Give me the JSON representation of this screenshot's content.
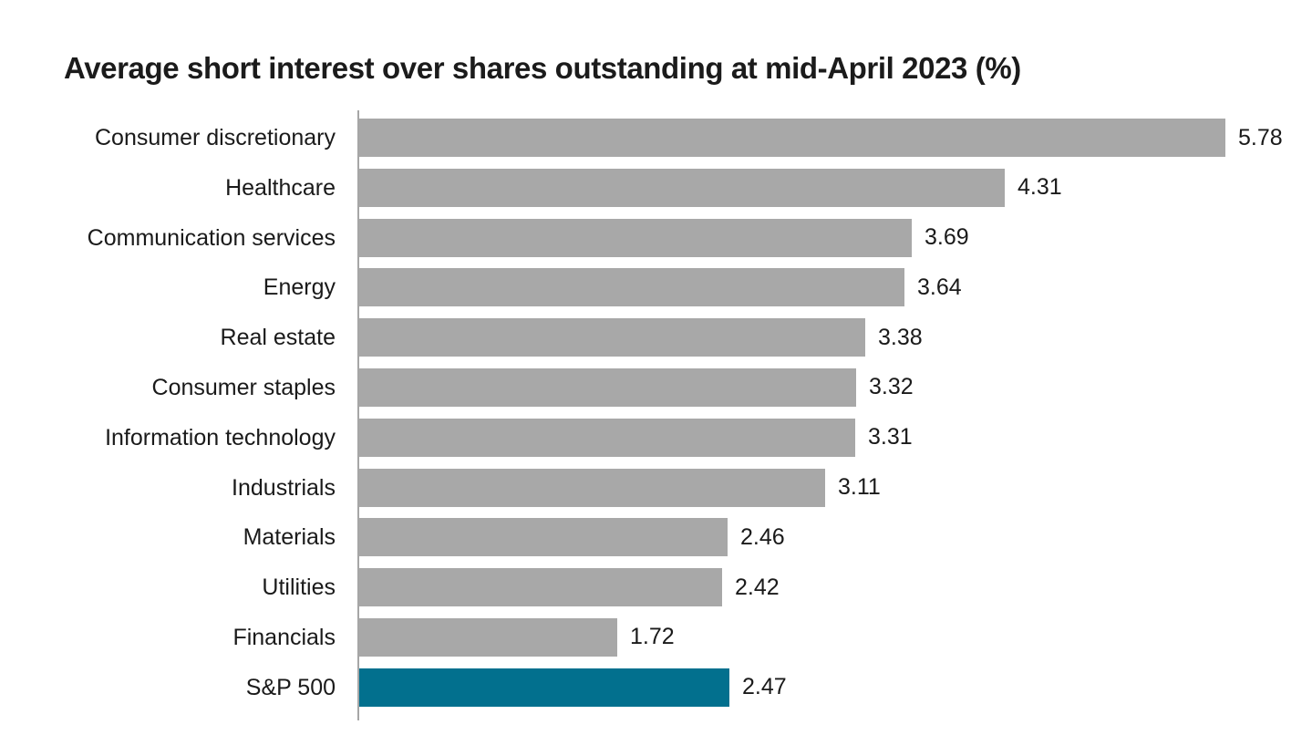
{
  "page": {
    "background_color": "#ffffff"
  },
  "chart_data": {
    "type": "bar",
    "orientation": "horizontal",
    "title": "Average short interest over shares outstanding at mid-April 2023 (%)",
    "categories": [
      "Consumer discretionary",
      "Healthcare",
      "Communication services",
      "Energy",
      "Real estate",
      "Consumer staples",
      "Information technology",
      "Industrials",
      "Materials",
      "Utilities",
      "Financials",
      "S&P 500"
    ],
    "values": [
      5.78,
      4.31,
      3.69,
      3.64,
      3.38,
      3.32,
      3.31,
      3.11,
      2.46,
      2.42,
      1.72,
      2.47
    ],
    "value_labels": [
      "5.78",
      "4.31",
      "3.69",
      "3.64",
      "3.38",
      "3.32",
      "3.31",
      "3.11",
      "2.46",
      "2.42",
      "1.72",
      "2.47"
    ],
    "highlight_category": "S&P 500",
    "xlabel": "",
    "ylabel": "",
    "xlim": [
      0,
      6
    ],
    "grid": false,
    "legend": false,
    "data_labels": "outside-end",
    "colors": {
      "bar": "#a8a8a8",
      "highlight_bar": "#02708e",
      "text": "#1a1a1a",
      "axis_line": "#a6a6a6"
    }
  }
}
